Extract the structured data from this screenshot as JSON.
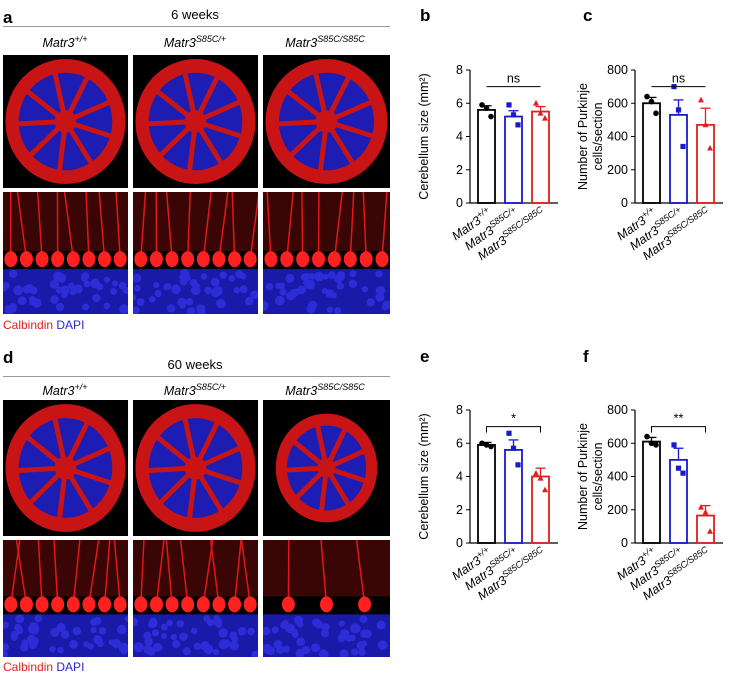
{
  "panel_letters": {
    "a": "a",
    "b": "b",
    "c": "c",
    "d": "d",
    "e": "e",
    "f": "f"
  },
  "groups": {
    "top": "6 weeks",
    "bottom": "60 weeks"
  },
  "genotypes": [
    {
      "base": "Matr3",
      "sup": "+/+"
    },
    {
      "base": "Matr3",
      "sup": "S85C/+"
    },
    {
      "base": "Matr3",
      "sup": "S85C/S85C"
    }
  ],
  "stain": {
    "calbindin": "Calbindin",
    "dapi": "DAPI"
  },
  "colors": {
    "wt": "#000000",
    "het": "#1a1acc",
    "hom": "#e01e1e",
    "calbindin": "#e11e1e",
    "dapi": "#2626d6"
  },
  "chart_data": [
    {
      "id": "b",
      "type": "bar",
      "ylabel": "Cerebellum size (mm²)",
      "ylim": [
        0,
        8
      ],
      "yticks": [
        0,
        2,
        4,
        6,
        8
      ],
      "categories": [
        "Matr3+/+",
        "Matr3S85C/+",
        "Matr3S85C/S85C"
      ],
      "values": [
        5.6,
        5.2,
        5.5
      ],
      "errors": [
        0.25,
        0.35,
        0.3
      ],
      "points": [
        [
          5.9,
          5.7,
          5.2
        ],
        [
          5.9,
          5.3,
          4.7
        ],
        [
          6.0,
          5.4,
          5.1
        ]
      ],
      "significance": [
        {
          "from": 0,
          "to": 2,
          "label": "ns",
          "y": 7.0
        }
      ]
    },
    {
      "id": "c",
      "type": "bar",
      "ylabel": "Number of Purkinje\ncells/section",
      "ylim": [
        0,
        800
      ],
      "yticks": [
        0,
        200,
        400,
        600,
        800
      ],
      "categories": [
        "Matr3+/+",
        "Matr3S85C/+",
        "Matr3S85C/S85C"
      ],
      "values": [
        600,
        530,
        470
      ],
      "errors": [
        35,
        90,
        100
      ],
      "points": [
        [
          640,
          610,
          540
        ],
        [
          700,
          560,
          340
        ],
        [
          620,
          470,
          330
        ]
      ],
      "significance": [
        {
          "from": 0,
          "to": 2,
          "label": "ns",
          "y": 700
        }
      ]
    },
    {
      "id": "e",
      "type": "bar",
      "ylabel": "Cerebellum size (mm²)",
      "ylim": [
        0,
        8
      ],
      "yticks": [
        0,
        2,
        4,
        6,
        8
      ],
      "categories": [
        "Matr3+/+",
        "Matr3S85C/+",
        "Matr3S85C/S85C"
      ],
      "values": [
        5.9,
        5.6,
        4.0
      ],
      "errors": [
        0.15,
        0.6,
        0.5
      ],
      "points": [
        [
          6.0,
          5.9,
          5.8
        ],
        [
          6.6,
          5.7,
          4.7
        ],
        [
          4.2,
          3.9,
          3.2
        ]
      ],
      "significance": [
        {
          "from": 0,
          "to": 2,
          "label": "*",
          "y": 7.0
        }
      ]
    },
    {
      "id": "f",
      "type": "bar",
      "ylabel": "Number of Purkinje\ncells/section",
      "ylim": [
        0,
        800
      ],
      "yticks": [
        0,
        200,
        400,
        600,
        800
      ],
      "categories": [
        "Matr3+/+",
        "Matr3S85C/+",
        "Matr3S85C/S85C"
      ],
      "values": [
        610,
        500,
        165
      ],
      "errors": [
        25,
        70,
        60
      ],
      "points": [
        [
          640,
          600,
          590
        ],
        [
          590,
          450,
          420
        ],
        [
          215,
          185,
          70
        ]
      ],
      "significance": [
        {
          "from": 0,
          "to": 2,
          "label": "**",
          "y": 700
        }
      ]
    }
  ]
}
